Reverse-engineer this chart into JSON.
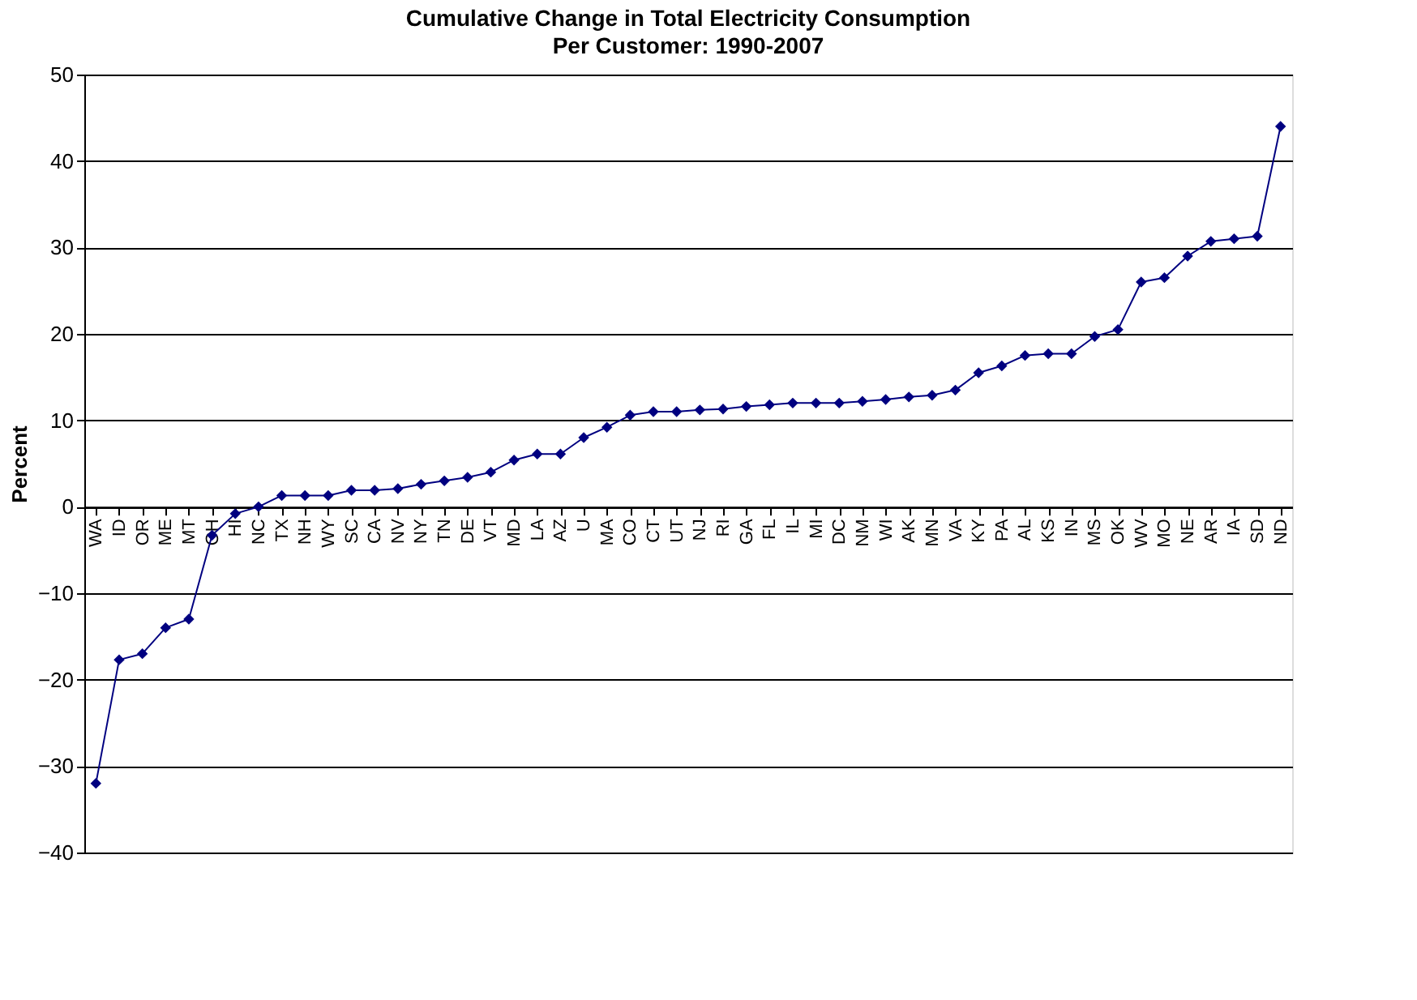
{
  "chart_data": {
    "type": "line",
    "title": "Cumulative Change in Total Electricity Consumption",
    "subtitle": "Per Customer: 1990-2007",
    "ylabel": "Percent",
    "categories": [
      "WA",
      "ID",
      "OR",
      "ME",
      "MT",
      "OH",
      "HI",
      "NC",
      "TX",
      "NH",
      "WY",
      "SC",
      "CA",
      "NV",
      "NY",
      "TN",
      "DE",
      "VT",
      "MD",
      "LA",
      "AZ",
      "U",
      "MA",
      "CO",
      "CT",
      "UT",
      "NJ",
      "RI",
      "GA",
      "FL",
      "IL",
      "MI",
      "DC",
      "NM",
      "WI",
      "AK",
      "MN",
      "VA",
      "KY",
      "PA",
      "AL",
      "KS",
      "IN",
      "MS",
      "OK",
      "WV",
      "MO",
      "NE",
      "AR",
      "IA",
      "SD",
      "ND"
    ],
    "series": [
      {
        "color": "#000080",
        "values": [
          -32,
          -17.7,
          -17,
          -14,
          -13,
          -3.3,
          -0.8,
          0,
          1.3,
          1.3,
          1.3,
          1.9,
          1.9,
          2.1,
          2.6,
          3.0,
          3.4,
          4.0,
          5.4,
          6.1,
          6.1,
          8.0,
          9.2,
          10.6,
          11.0,
          11.0,
          11.2,
          11.3,
          11.6,
          11.8,
          12.0,
          12.0,
          12.0,
          12.2,
          12.4,
          12.7,
          12.9,
          13.5,
          15.5,
          16.3,
          17.5,
          17.7,
          17.7,
          19.7,
          20.5,
          26,
          26.5,
          29,
          30.7,
          31,
          31.3,
          44
        ]
      }
    ],
    "ylim": [
      -40,
      50
    ],
    "yticks": [
      -40,
      -30,
      -20,
      -10,
      0,
      10,
      20,
      30,
      40,
      50
    ],
    "grid": "y",
    "marker": "diamond",
    "line_style": "solid"
  }
}
